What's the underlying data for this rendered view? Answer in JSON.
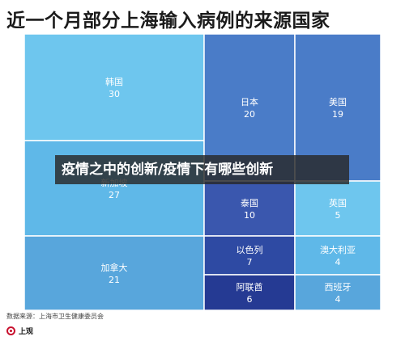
{
  "title": "近一个月部分上海输入病例的来源国家",
  "overlay_banner": "疫情之中的创新/疫情下有哪些创新",
  "source_note": "数据来源：上海市卫生健康委员会",
  "logo": {
    "text": "上观"
  },
  "colors": {
    "tile_light": "#6ec6ee",
    "tile_mid": "#5a9fd8",
    "tile_blue": "#4a7cc8",
    "tile_dark": "#3a57ae",
    "tile_navy": "#253a93",
    "tile_sky": "#5fb8e8",
    "tile_lightblue": "#58a6dc"
  },
  "chart_data": {
    "type": "treemap",
    "title": "近一个月部分上海输入病例的来源国家",
    "items": [
      {
        "name": "韩国",
        "value": 30,
        "color": "#6ec6ee"
      },
      {
        "name": "新加坡",
        "value": 27,
        "color": "#5fb8e8"
      },
      {
        "name": "加拿大",
        "value": 21,
        "color": "#58a6dc"
      },
      {
        "name": "日本",
        "value": 20,
        "color": "#4a7cc8"
      },
      {
        "name": "美国",
        "value": 19,
        "color": "#4a7cc8"
      },
      {
        "name": "泰国",
        "value": 10,
        "color": "#3a57ae"
      },
      {
        "name": "以色列",
        "value": 7,
        "color": "#2e4aa3"
      },
      {
        "name": "阿联酋",
        "value": 6,
        "color": "#253a93"
      },
      {
        "name": "英国",
        "value": 5,
        "color": "#6ec6ee"
      },
      {
        "name": "澳大利亚",
        "value": 4,
        "color": "#5fb8e8"
      },
      {
        "name": "西班牙",
        "value": 4,
        "color": "#58a6dc"
      }
    ]
  }
}
